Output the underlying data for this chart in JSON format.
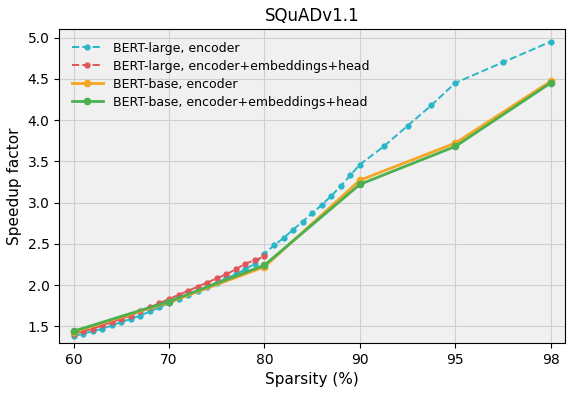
{
  "title": "SQuADv1.1",
  "xlabel": "Sparsity (%)",
  "ylabel": "Speedup factor",
  "x_ticks_labels": [
    60,
    70,
    80,
    90,
    95,
    98
  ],
  "x_ticks_pos": [
    0,
    1,
    2,
    3,
    4,
    5
  ],
  "ylim": [
    1.3,
    5.1
  ],
  "series": [
    {
      "label": "BERT-large, encoder",
      "color": "#29b6c8",
      "linestyle": "--",
      "marker": "o",
      "markersize": 3.5,
      "linewidth": 1.4,
      "x_pos": [
        0,
        0.1,
        0.2,
        0.3,
        0.4,
        0.5,
        0.6,
        0.7,
        0.8,
        0.9,
        1.0,
        1.1,
        1.2,
        1.3,
        1.4,
        1.5,
        1.6,
        1.7,
        1.8,
        1.9,
        2.0,
        2.1,
        2.2,
        2.3,
        2.4,
        2.5,
        2.6,
        2.7,
        2.8,
        2.9,
        3.0,
        3.25,
        3.5,
        3.75,
        4.0,
        4.5,
        5.0
      ],
      "y": [
        1.38,
        1.41,
        1.44,
        1.47,
        1.51,
        1.55,
        1.59,
        1.63,
        1.68,
        1.73,
        1.78,
        1.83,
        1.88,
        1.93,
        1.98,
        2.03,
        2.08,
        2.13,
        2.19,
        2.26,
        2.38,
        2.48,
        2.57,
        2.67,
        2.77,
        2.87,
        2.97,
        3.08,
        3.2,
        3.33,
        3.46,
        3.68,
        3.93,
        4.18,
        4.45,
        4.7,
        4.95
      ]
    },
    {
      "label": "BERT-large, encoder+embeddings+head",
      "color": "#e05555",
      "linestyle": "--",
      "marker": "o",
      "markersize": 3.5,
      "linewidth": 1.4,
      "x_pos": [
        0,
        0.1,
        0.2,
        0.3,
        0.4,
        0.5,
        0.6,
        0.7,
        0.8,
        0.9,
        1.0,
        1.1,
        1.2,
        1.3,
        1.4,
        1.5,
        1.6,
        1.7,
        1.8,
        1.9,
        2.0
      ],
      "y": [
        1.41,
        1.44,
        1.47,
        1.51,
        1.55,
        1.59,
        1.63,
        1.68,
        1.73,
        1.78,
        1.83,
        1.88,
        1.93,
        1.98,
        2.03,
        2.08,
        2.13,
        2.19,
        2.26,
        2.3,
        2.35
      ]
    },
    {
      "label": "BERT-base, encoder",
      "color": "#f5a623",
      "linestyle": "-",
      "marker": "o",
      "markersize": 4.5,
      "linewidth": 2.0,
      "x_pos": [
        0,
        1,
        2,
        3,
        4,
        5
      ],
      "y": [
        1.43,
        1.79,
        2.22,
        3.27,
        3.72,
        4.47
      ]
    },
    {
      "label": "BERT-base, encoder+embeddings+head",
      "color": "#4caf50",
      "linestyle": "-",
      "marker": "o",
      "markersize": 4.5,
      "linewidth": 2.0,
      "x_pos": [
        0,
        1,
        2,
        3,
        4,
        5
      ],
      "y": [
        1.44,
        1.8,
        2.24,
        3.22,
        3.68,
        4.45
      ]
    }
  ],
  "grid_color": "#d0d0d0",
  "background_color": "#f0f0f0",
  "title_fontsize": 12,
  "label_fontsize": 11,
  "tick_fontsize": 10,
  "legend_fontsize": 9
}
